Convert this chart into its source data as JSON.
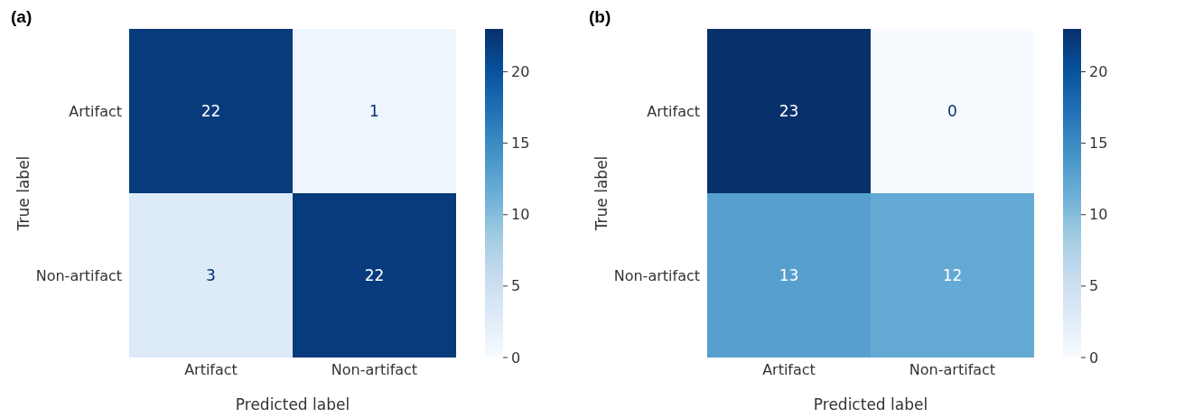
{
  "chart_data": [
    {
      "type": "heatmap",
      "title": "(a)",
      "xlabel": "Predicted label",
      "ylabel": "True label",
      "categories": [
        "Artifact",
        "Non-artifact"
      ],
      "y_categories": [
        "Artifact",
        "Non-artifact"
      ],
      "cells": [
        [
          22,
          1
        ],
        [
          3,
          22
        ]
      ],
      "data_labels": true,
      "clim": [
        0,
        23
      ],
      "cticks": [
        0,
        5,
        10,
        15,
        20
      ]
    },
    {
      "type": "heatmap",
      "title": "(b)",
      "xlabel": "Predicted label",
      "ylabel": "True label",
      "categories": [
        "Artifact",
        "Non-artifact"
      ],
      "y_categories": [
        "Artifact",
        "Non-artifact"
      ],
      "cells": [
        [
          23,
          0
        ],
        [
          13,
          12
        ]
      ],
      "data_labels": true,
      "clim": [
        0,
        23
      ],
      "cticks": [
        0,
        5,
        10,
        15,
        20
      ]
    }
  ]
}
